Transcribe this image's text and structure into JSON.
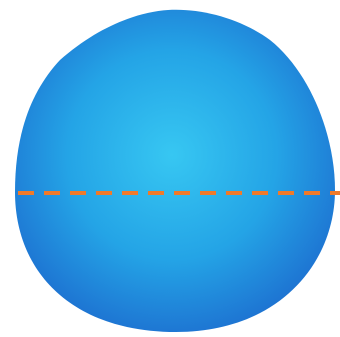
{
  "figure": {
    "shape": "rounded drop-like blob",
    "fill": {
      "center_color": "#37c7f2",
      "mid_color": "#24a4e6",
      "edge_color": "#1d6fd0"
    },
    "line": {
      "style": "dashed",
      "color": "#f07a2a"
    }
  }
}
